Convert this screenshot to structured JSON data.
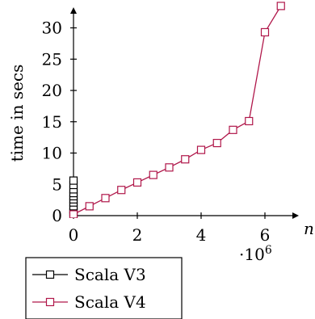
{
  "chart_data": {
    "type": "line",
    "xlabel": "n",
    "ylabel": "time in secs",
    "x_multiplier_label": "·10",
    "x_multiplier_exponent": "6",
    "xlim": [
      0,
      6.6
    ],
    "ylim": [
      0,
      31.5
    ],
    "x_ticks": [
      0,
      2,
      4,
      6
    ],
    "y_ticks": [
      0,
      5,
      10,
      15,
      20,
      25,
      30
    ],
    "legend_position": "bottom-left",
    "grid": false,
    "series": [
      {
        "name": "Scala V3",
        "color": "#000000",
        "marker": "square",
        "x": [
          0.0,
          0.0,
          0.0,
          0.0,
          0.0,
          0.0,
          0.0,
          0.0,
          0.0,
          0.0,
          0.0
        ],
        "y": [
          0.0,
          0.5,
          1.0,
          1.5,
          2.1,
          2.6,
          3.1,
          3.6,
          4.2,
          4.9,
          5.6
        ]
      },
      {
        "name": "Scala V4",
        "color": "#b0174a",
        "marker": "square",
        "x": [
          0.0,
          0.5,
          1.0,
          1.5,
          2.0,
          2.5,
          3.0,
          3.5,
          4.0,
          4.5,
          5.0,
          5.5,
          6.0,
          6.5
        ],
        "y": [
          0.2,
          1.5,
          2.8,
          4.1,
          5.3,
          6.5,
          7.7,
          9.0,
          10.5,
          11.6,
          13.7,
          15.1,
          29.3,
          33.5
        ]
      }
    ]
  }
}
